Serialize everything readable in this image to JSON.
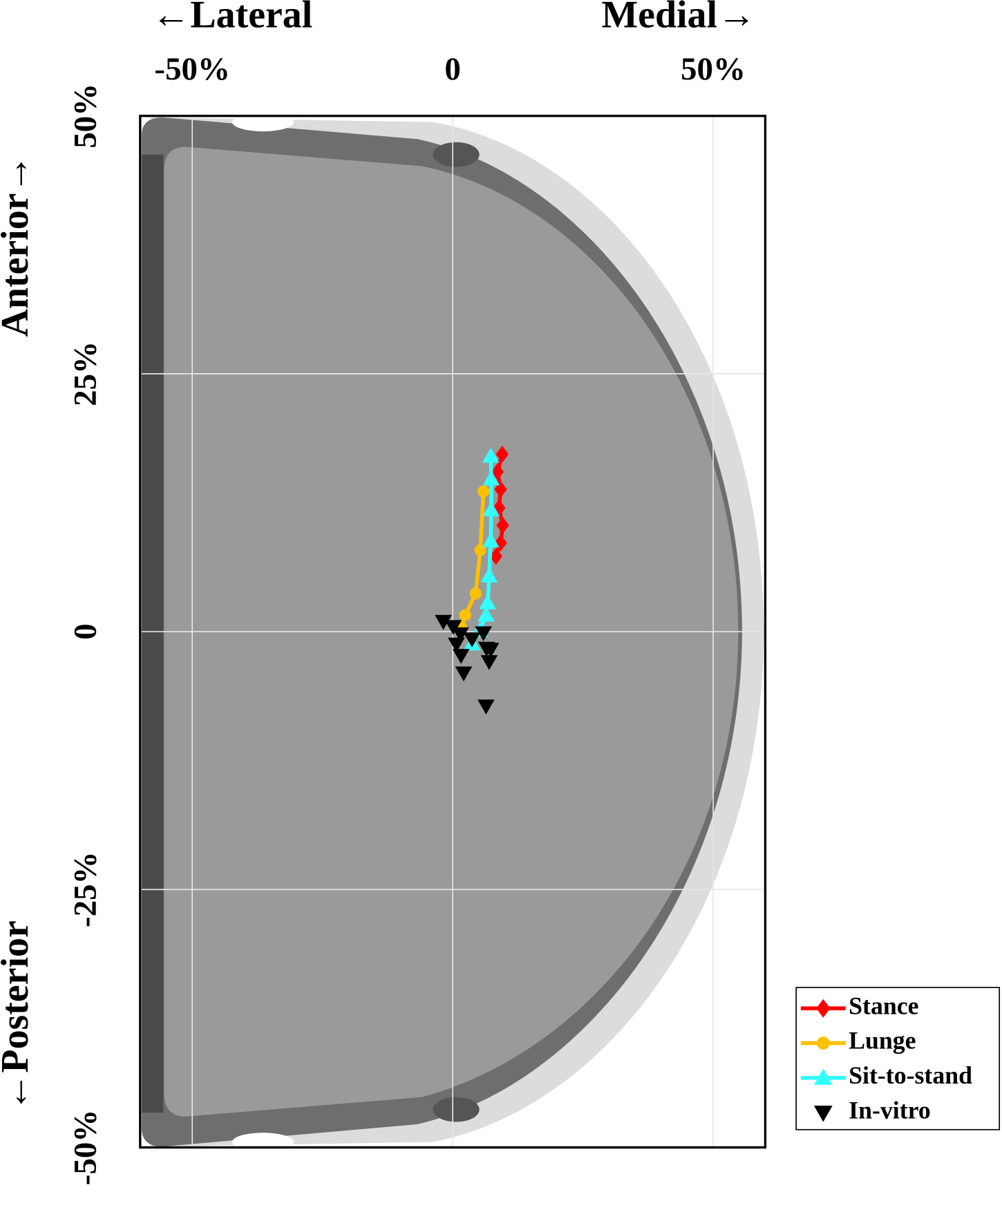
{
  "chart_data": {
    "type": "scatter",
    "x_label_left": "←Lateral",
    "x_label_right": "Medial→",
    "y_label_top": "Anterior→",
    "y_label_bottom": "←Posterior",
    "xlim": [
      -60,
      60
    ],
    "ylim": [
      -50,
      50
    ],
    "xticks": [
      {
        "value": -50,
        "label": "-50%"
      },
      0,
      {
        "value": 50,
        "label": "50%"
      }
    ],
    "yticks": [
      {
        "value": -50,
        "label": "-50%"
      },
      {
        "value": -25,
        "label": "-25%"
      },
      0,
      {
        "value": 25,
        "label": "25%"
      },
      {
        "value": 50,
        "label": "50%"
      }
    ],
    "grid": true,
    "legend": "lower-right",
    "series": [
      {
        "name": "Stance",
        "color": "#ff0000",
        "marker": "diamond",
        "line": true,
        "x": [
          9.5,
          8.6,
          9.2,
          8.9,
          9.6,
          9.2,
          8.3
        ],
        "values": [
          17.2,
          15.5,
          13.8,
          12,
          10.3,
          8.6,
          7.3
        ]
      },
      {
        "name": "Lunge",
        "color": "#ffc000",
        "marker": "circle",
        "line": true,
        "x": [
          5.9,
          5.3,
          4.4,
          2.4,
          1.6
        ],
        "values": [
          13.6,
          7.9,
          3.7,
          1.6,
          0.5
        ]
      },
      {
        "name": "Sit-to-stand",
        "color": "#33ffff",
        "marker": "triangle-up",
        "line": true,
        "x": [
          7.3,
          7.4,
          7.4,
          7.3,
          7,
          6.7,
          6.4,
          5.2,
          3.7
        ],
        "values": [
          17,
          14.8,
          11.8,
          8.8,
          5.4,
          2.8,
          1.6,
          0.1,
          -1.2
        ]
      },
      {
        "name": "In-vitro",
        "color": "#000000",
        "marker": "triangle-down",
        "line": false,
        "x": [
          -1.8,
          0.1,
          1.5,
          0.7,
          1.6,
          2.1,
          5.9,
          6.5,
          7.3,
          7,
          6.4,
          3.7
        ],
        "values": [
          1,
          0.5,
          -0.2,
          -1.2,
          -2.3,
          -4,
          -0.1,
          -1.6,
          -1.7,
          -2.9,
          -7.2,
          -0.7
        ]
      }
    ]
  }
}
